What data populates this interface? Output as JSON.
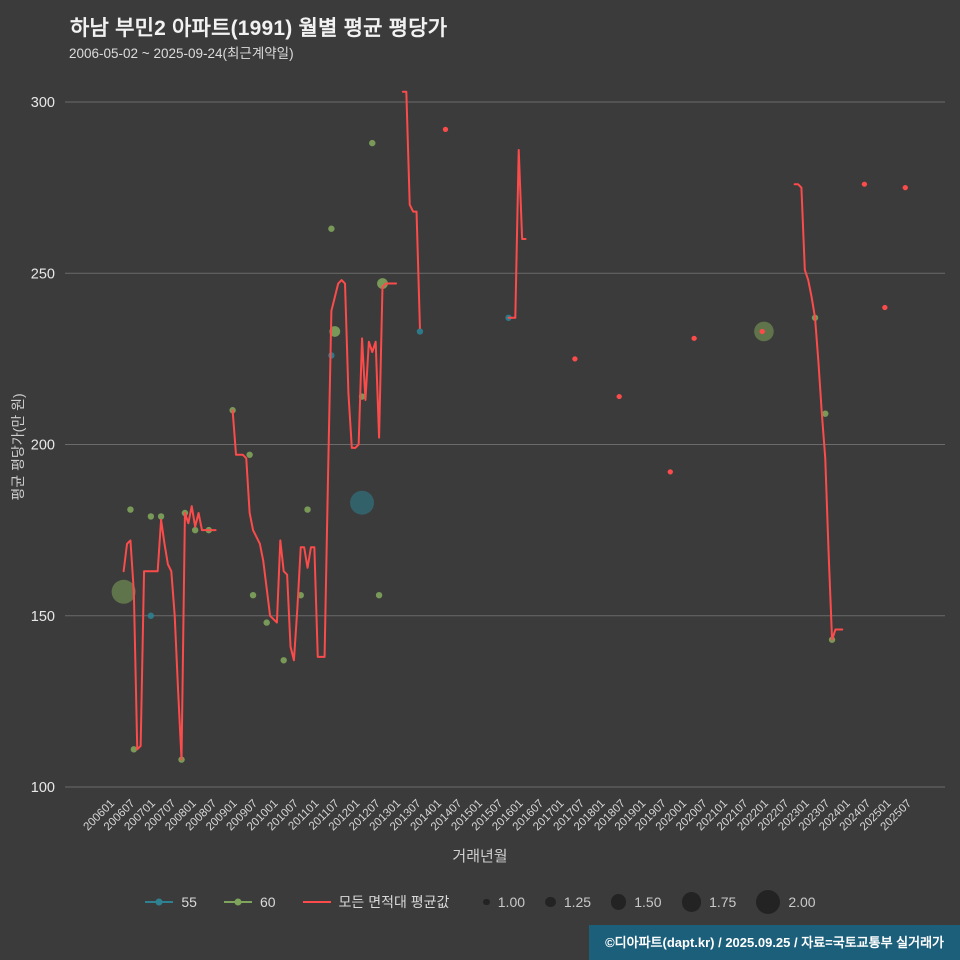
{
  "header": {
    "title": "하남 부민2 아파트(1991) 월별 평균 평당가",
    "subtitle": "2006-05-02 ~ 2025-09-24(최근계약일)"
  },
  "footer": {
    "text": "©디아파트(dapt.kr) / 2025.09.25 / 자료=국토교통부 실거래가"
  },
  "colors": {
    "background": "#3b3b3b",
    "grid": "#6b6b6b",
    "text": "#e8e8e8",
    "tick": "#d6d6d6",
    "red": "#fb4b4b",
    "teal": "#2e8191",
    "green": "#7fa45b",
    "footer_bg": "#1b5f7b",
    "size_dot": "#232323"
  },
  "chart_data": {
    "type": "line+scatter",
    "title": "하남 부민2 아파트(1991) 월별 평균 평당가",
    "subtitle": "2006-05-02 ~ 2025-09-24(최근계약일)",
    "xlabel": "거래년월",
    "ylabel": "평균 평당가(만 원)",
    "ylim": [
      100,
      310
    ],
    "yticks": [
      100,
      150,
      200,
      250,
      300
    ],
    "grid": "horizontal-only",
    "legend_position": "bottom",
    "xticks": [
      "200601",
      "200607",
      "200701",
      "200707",
      "200801",
      "200807",
      "200901",
      "200907",
      "201001",
      "201007",
      "201101",
      "201107",
      "201201",
      "201207",
      "201301",
      "201307",
      "201401",
      "201407",
      "201501",
      "201507",
      "201601",
      "201607",
      "201701",
      "201707",
      "201801",
      "201807",
      "201901",
      "201907",
      "202001",
      "202007",
      "202101",
      "202107",
      "202201",
      "202207",
      "202301",
      "202307",
      "202401",
      "202407",
      "202501",
      "202507"
    ],
    "size_legend": [
      1.0,
      1.25,
      1.5,
      1.75,
      2.0
    ],
    "series": [
      {
        "name": "55",
        "type": "scatter",
        "color": "#2e8191",
        "points": [
          [
            "200701",
            150,
            1
          ],
          [
            "201106",
            226,
            1
          ],
          [
            "201203",
            183,
            2
          ],
          [
            "201308",
            233,
            1
          ],
          [
            "201510",
            237,
            1
          ]
        ]
      },
      {
        "name": "60",
        "type": "scatter",
        "color": "#7fa45b",
        "points": [
          [
            "200605",
            157,
            2
          ],
          [
            "200607",
            181,
            1
          ],
          [
            "200608",
            111,
            1
          ],
          [
            "200701",
            179,
            1
          ],
          [
            "200704",
            179,
            1
          ],
          [
            "200710",
            108,
            1
          ],
          [
            "200711",
            180,
            1
          ],
          [
            "200802",
            175,
            1
          ],
          [
            "200806",
            175,
            1
          ],
          [
            "200901",
            210,
            1
          ],
          [
            "200906",
            197,
            1
          ],
          [
            "200907",
            156,
            1
          ],
          [
            "200911",
            148,
            1
          ],
          [
            "201004",
            137,
            1
          ],
          [
            "201009",
            156,
            1
          ],
          [
            "201011",
            181,
            1
          ],
          [
            "201106",
            263,
            1
          ],
          [
            "201107",
            233,
            1.25
          ],
          [
            "201203",
            214,
            1
          ],
          [
            "201206",
            288,
            1
          ],
          [
            "201208",
            156,
            1
          ],
          [
            "201209",
            247,
            1.25
          ],
          [
            "202201",
            233,
            1.75
          ],
          [
            "202304",
            237,
            1
          ],
          [
            "202307",
            209,
            1
          ],
          [
            "202309",
            143,
            1
          ]
        ]
      },
      {
        "name": "모든 면적대 평균값",
        "type": "line",
        "color": "#fb4b4b",
        "segments": [
          [
            [
              "200605",
              163
            ],
            [
              "200606",
              171
            ],
            [
              "200607",
              172
            ],
            [
              "200608",
              157
            ],
            [
              "200609",
              111
            ],
            [
              "200610",
              112
            ],
            [
              "200611",
              163
            ],
            [
              "200612",
              163
            ],
            [
              "200701",
              163
            ],
            [
              "200702",
              163
            ],
            [
              "200703",
              163
            ],
            [
              "200704",
              178
            ],
            [
              "200705",
              171
            ],
            [
              "200706",
              165
            ],
            [
              "200707",
              163
            ],
            [
              "200708",
              150
            ],
            [
              "200709",
              128
            ],
            [
              "200710",
              108
            ],
            [
              "200711",
              180
            ],
            [
              "200712",
              177
            ],
            [
              "200801",
              182
            ],
            [
              "200802",
              176
            ],
            [
              "200803",
              180
            ],
            [
              "200804",
              175
            ],
            [
              "200805",
              175
            ],
            [
              "200806",
              175
            ],
            [
              "200807",
              175
            ],
            [
              "200808",
              175
            ]
          ],
          [
            [
              "200901",
              210
            ],
            [
              "200902",
              197
            ],
            [
              "200903",
              197
            ],
            [
              "200904",
              197
            ],
            [
              "200905",
              196
            ],
            [
              "200906",
              180
            ],
            [
              "200907",
              175
            ],
            [
              "200908",
              173
            ],
            [
              "200909",
              171
            ],
            [
              "200910",
              166
            ],
            [
              "200911",
              158
            ],
            [
              "200912",
              150
            ],
            [
              "201001",
              149
            ],
            [
              "201002",
              148
            ],
            [
              "201003",
              172
            ],
            [
              "201004",
              163
            ],
            [
              "201005",
              162
            ],
            [
              "201006",
              141
            ],
            [
              "201007",
              137
            ],
            [
              "201008",
              152
            ],
            [
              "201009",
              170
            ],
            [
              "201010",
              170
            ],
            [
              "201011",
              164
            ],
            [
              "201012",
              170
            ],
            [
              "201101",
              170
            ],
            [
              "201102",
              138
            ],
            [
              "201103",
              138
            ],
            [
              "201104",
              138
            ],
            [
              "201105",
              190
            ],
            [
              "201106",
              239
            ],
            [
              "201107",
              243
            ],
            [
              "201108",
              247
            ],
            [
              "201109",
              248
            ],
            [
              "201110",
              247
            ],
            [
              "201111",
              215
            ],
            [
              "201112",
              199
            ],
            [
              "201201",
              199
            ],
            [
              "201202",
              200
            ],
            [
              "201203",
              231
            ],
            [
              "201204",
              213
            ],
            [
              "201205",
              230
            ],
            [
              "201206",
              227
            ],
            [
              "201207",
              230
            ],
            [
              "201208",
              202
            ],
            [
              "201209",
              246
            ],
            [
              "201210",
              247
            ],
            [
              "201211",
              247
            ],
            [
              "201212",
              247
            ],
            [
              "201301",
              247
            ]
          ],
          [
            [
              "201303",
              303
            ],
            [
              "201304",
              303
            ],
            [
              "201305",
              270
            ],
            [
              "201306",
              268
            ],
            [
              "201307",
              268
            ],
            [
              "201308",
              234
            ]
          ],
          [
            [
              "201403",
              292
            ],
            [
              "201404",
              292
            ]
          ],
          [
            [
              "201510",
              237
            ],
            [
              "201511",
              237
            ],
            [
              "201512",
              237
            ],
            [
              "201601",
              286
            ],
            [
              "201602",
              260
            ],
            [
              "201603",
              260
            ]
          ],
          [
            [
              "201705",
              225
            ],
            [
              "201706",
              225
            ]
          ],
          [
            [
              "201806",
              214
            ],
            [
              "201807",
              214
            ]
          ],
          [
            [
              "201909",
              192
            ],
            [
              "201910",
              192
            ]
          ],
          [
            [
              "202004",
              231
            ],
            [
              "202005",
              231
            ]
          ],
          [
            [
              "202112",
              233
            ],
            [
              "202201",
              233
            ]
          ],
          [
            [
              "202210",
              276
            ],
            [
              "202211",
              276
            ],
            [
              "202212",
              275
            ],
            [
              "202301",
              251
            ],
            [
              "202302",
              248
            ],
            [
              "202303",
              243
            ],
            [
              "202304",
              237
            ],
            [
              "202305",
              224
            ],
            [
              "202306",
              209
            ],
            [
              "202307",
              196
            ],
            [
              "202308",
              168
            ],
            [
              "202309",
              143
            ],
            [
              "202310",
              146
            ],
            [
              "202311",
              146
            ],
            [
              "202312",
              146
            ]
          ],
          [
            [
              "202406",
              276
            ],
            [
              "202407",
              276
            ]
          ],
          [
            [
              "202412",
              240
            ],
            [
              "202501",
              240
            ]
          ],
          [
            [
              "202506",
              275
            ],
            [
              "202507",
              275
            ]
          ]
        ]
      }
    ]
  }
}
